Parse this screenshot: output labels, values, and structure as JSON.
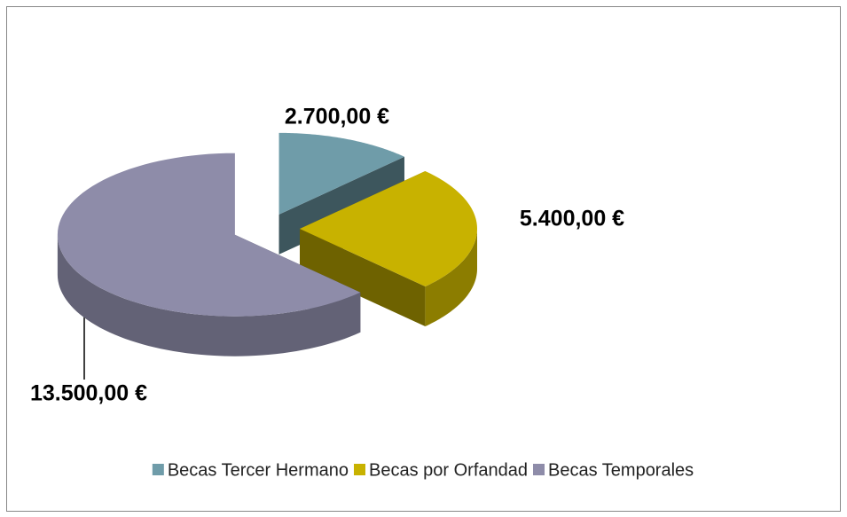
{
  "chart_data": {
    "type": "pie3d",
    "categories": [
      "Becas Tercer Hermano",
      "Becas por Orfandad",
      "Becas Temporales"
    ],
    "values": [
      2700,
      5400,
      13500
    ],
    "value_labels": [
      "2.700,00 €",
      "5.400,00 €",
      "13.500,00 €"
    ],
    "colors": [
      "#6f9ca9",
      "#c8b200",
      "#8e8ca9"
    ],
    "legend": "bottom"
  }
}
